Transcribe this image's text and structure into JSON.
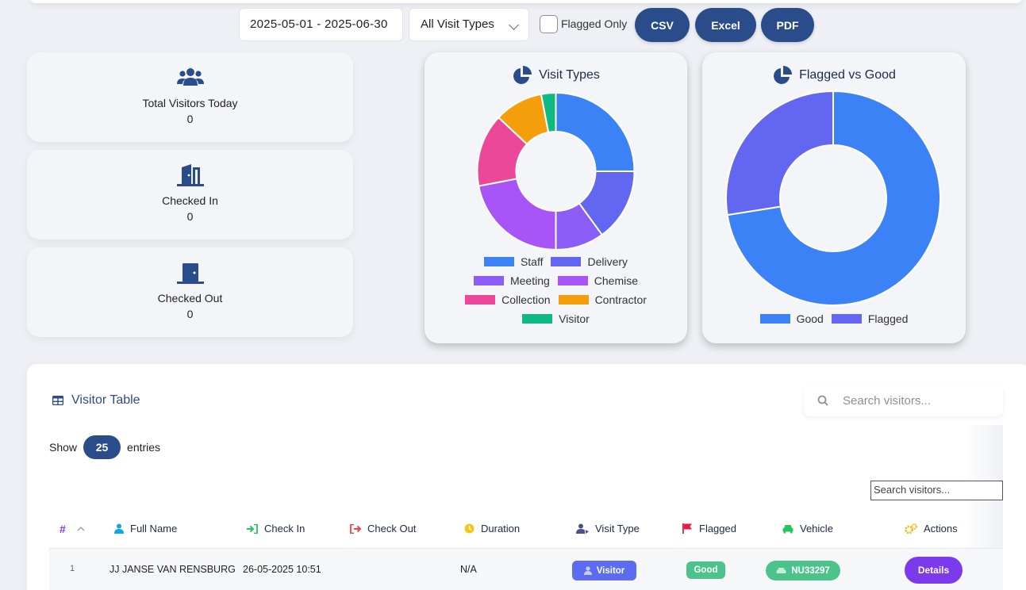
{
  "filters": {
    "date_range": "2025-05-01 - 2025-06-30",
    "visit_type": "All Visit Types",
    "flagged_only_label": "Flagged Only",
    "flagged_only_checked": false,
    "export_csv": "CSV",
    "export_excel": "Excel",
    "export_pdf": "PDF"
  },
  "stats": [
    {
      "label": "Total Visitors Today",
      "value": "0",
      "icon": "users-icon"
    },
    {
      "label": "Checked In",
      "value": "0",
      "icon": "door-open-icon"
    },
    {
      "label": "Checked Out",
      "value": "0",
      "icon": "door-closed-icon"
    }
  ],
  "charts": {
    "visit_types_title": "Visit Types",
    "flagged_title": "Flagged vs Good"
  },
  "chart_data": [
    {
      "type": "pie",
      "title": "Visit Types",
      "donut": true,
      "legend_position": "bottom",
      "categories": [
        "Staff",
        "Delivery",
        "Meeting",
        "Chemise",
        "Collection",
        "Contractor",
        "Visitor"
      ],
      "values": [
        25,
        15,
        10,
        22,
        15,
        10,
        3
      ],
      "colors": [
        "#3b82f6",
        "#6366f1",
        "#8b5cf6",
        "#a855f7",
        "#ec4899",
        "#f59e0b",
        "#10b981"
      ]
    },
    {
      "type": "pie",
      "title": "Flagged vs Good",
      "donut": true,
      "legend_position": "bottom",
      "categories": [
        "Good",
        "Flagged"
      ],
      "values": [
        72.5,
        27.5
      ],
      "colors": [
        "#3b82f6",
        "#6366f1"
      ]
    }
  ],
  "table": {
    "title": "Visitor Table",
    "search_placeholder": "Search visitors...",
    "show_label": "Show",
    "entries_value": "25",
    "entries_label": "entries",
    "search_small_placeholder": "Search visitors...",
    "headers": {
      "index": "#",
      "full_name": "Full Name",
      "check_in": "Check In",
      "check_out": "Check Out",
      "duration": "Duration",
      "visit_type": "Visit Type",
      "flagged": "Flagged",
      "vehicle": "Vehicle",
      "actions": "Actions"
    },
    "rows": [
      {
        "index": "1",
        "full_name": "JJ JANSE VAN RENSBURG",
        "check_in": "26-05-2025 10:51",
        "check_out": "",
        "duration": "N/A",
        "visit_type": "Visitor",
        "flagged": "Good",
        "vehicle": "NU33297",
        "action": "Details"
      }
    ]
  },
  "colors": {
    "primary": "#2b4c8a",
    "good_badge": "#4cc38a",
    "visitor_badge": "#5b6cf0",
    "details_button": "#7c3aed"
  }
}
